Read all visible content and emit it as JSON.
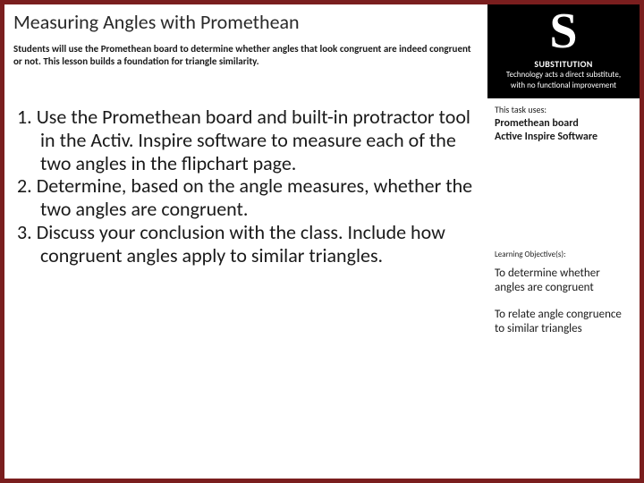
{
  "colors": {
    "border": "#7a1e1e",
    "badge_bg": "#000000",
    "badge_fg": "#ffffff",
    "text": "#1a1a1a"
  },
  "header": {
    "title": "Measuring Angles with Promethean",
    "intro": "Students will use the Promethean board to determine whether angles that look congruent are indeed congruent or not. This lesson builds a foundation for triangle similarity."
  },
  "badge": {
    "letter": "S",
    "word": "SUBSTITUTION",
    "desc1": "Technology acts a direct substitute,",
    "desc2": "with no functional improvement"
  },
  "steps": {
    "items": [
      "Use the Promethean board and built-in protractor tool in the Activ. Inspire software to measure each of the two angles in the flipchart page.",
      "Determine, based on the angle measures, whether the two angles are congruent.",
      "Discuss your conclusion with the class. Include how congruent angles apply to similar triangles."
    ]
  },
  "sidebar": {
    "uses_label": "This task uses:",
    "uses": [
      "Promethean board",
      "Active Inspire Software"
    ],
    "obj_label": "Learning Objective(s):",
    "objectives": [
      "To determine whether angles are congruent",
      "To relate angle congruence to similar triangles"
    ]
  }
}
